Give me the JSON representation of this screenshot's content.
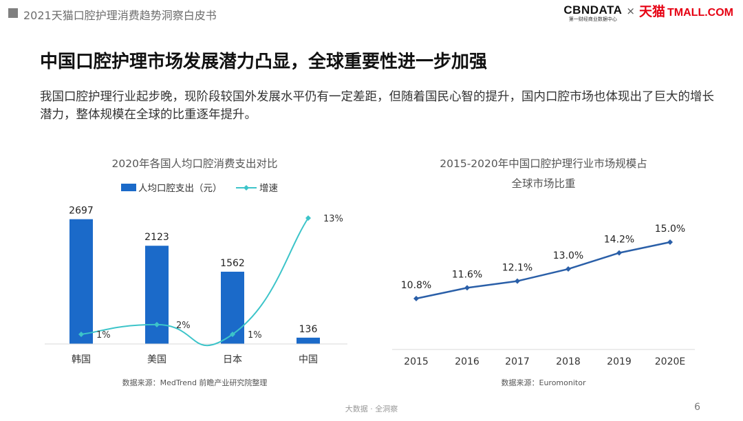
{
  "header": {
    "report_title": "2021天猫口腔护理消费趋势洞察白皮书",
    "logo_cbn": "CBNDATA",
    "logo_cbn_sub": "第一财经商业数据中心",
    "logo_times": "×",
    "logo_tmall_cn": "天猫",
    "logo_tmall_en": "TMALL.COM"
  },
  "title": "中国口腔护理市场发展潜力凸显，全球重要性进一步加强",
  "description": "我国口腔护理行业起步晚，现阶段较国外发展水平仍有一定差距，但随着国民心智的提升，国内口腔市场也体现出了巨大的增长潜力，整体规模在全球的比重逐年提升。",
  "footer": {
    "center": "大数据 · 全洞察",
    "page": "6"
  },
  "colors": {
    "bar": "#1b6ac9",
    "growth": "#3cc4c9",
    "line": "#2a5fa8",
    "axis": "#d9d9d9"
  },
  "chart_data": [
    {
      "type": "bar",
      "title": "2020年各国人均口腔消费支出对比",
      "categories": [
        "韩国",
        "美国",
        "日本",
        "中国"
      ],
      "series": [
        {
          "name": "人均口腔支出（元）",
          "kind": "bar",
          "values": [
            2697,
            2123,
            1562,
            136
          ]
        },
        {
          "name": "增速",
          "kind": "line",
          "values": [
            1,
            2,
            1,
            13
          ],
          "labels": [
            "1%",
            "2%",
            "1%",
            "13%"
          ]
        }
      ],
      "ylim": [
        0,
        2900
      ],
      "growth_ylim": [
        0,
        14
      ],
      "legend": "top",
      "grid": false,
      "source": "数据来源：MedTrend 前瞻产业研究院整理"
    },
    {
      "type": "line",
      "title": "2015-2020年中国口腔护理行业市场规模占全球市场比重",
      "title_lines": [
        "2015-2020年中国口腔护理行业市场规模占",
        "全球市场比重"
      ],
      "x": [
        "2015",
        "2016",
        "2017",
        "2018",
        "2019",
        "2020E"
      ],
      "values": [
        10.8,
        11.6,
        12.1,
        13.0,
        14.2,
        15.0
      ],
      "labels": [
        "10.8%",
        "11.6%",
        "12.1%",
        "13.0%",
        "14.2%",
        "15.0%"
      ],
      "ylim": [
        6,
        16
      ],
      "grid": false,
      "source": "数据来源：Euromonitor"
    }
  ]
}
